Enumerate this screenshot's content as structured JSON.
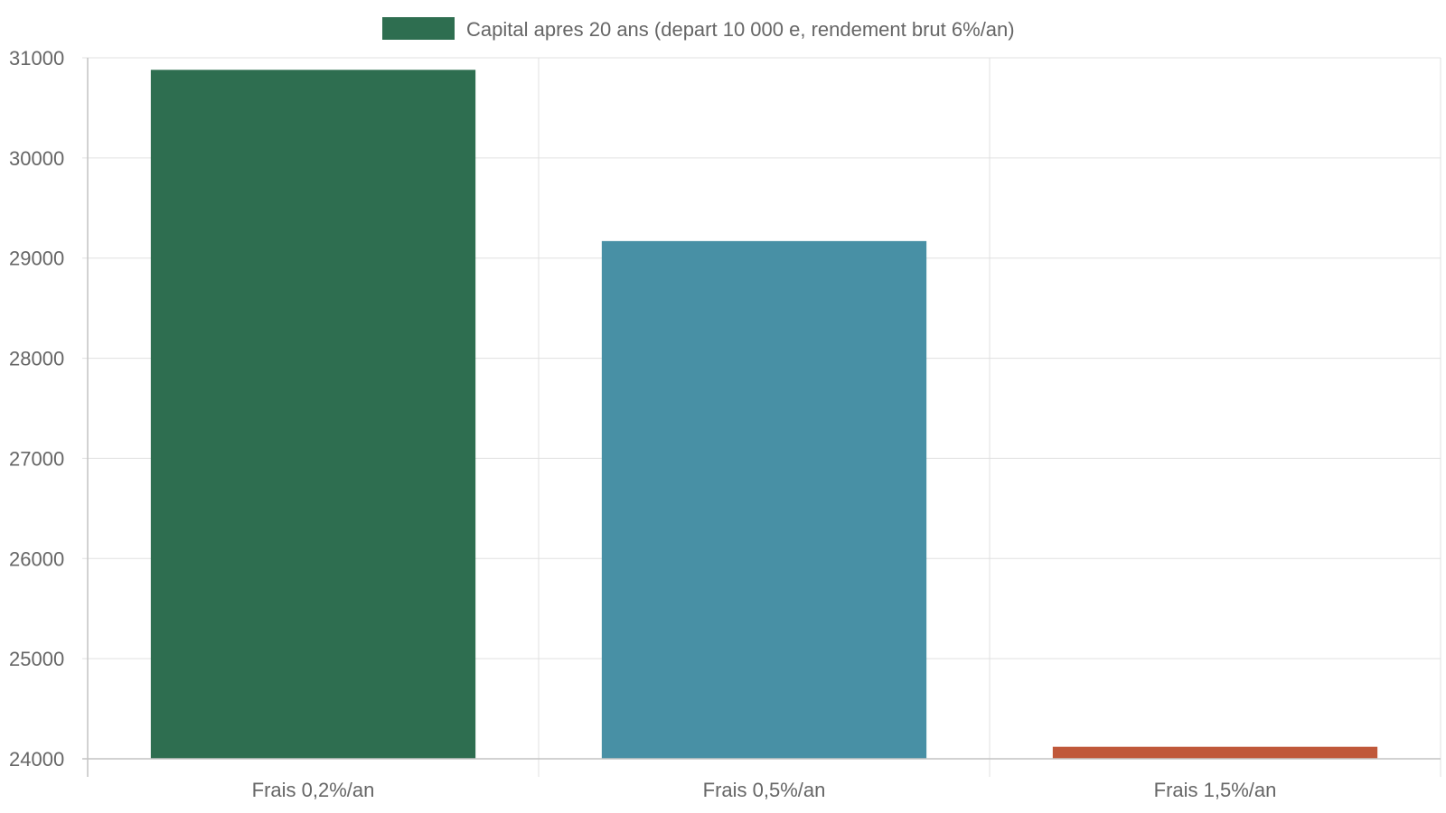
{
  "chart_data": {
    "type": "bar",
    "categories": [
      "Frais 0,2%/an",
      "Frais 0,5%/an",
      "Frais 1,5%/an"
    ],
    "series": [
      {
        "name": "Capital apres 20 ans (depart 10 000 e, rendement brut 6%/an)",
        "values": [
          30880,
          29170,
          24120
        ]
      }
    ],
    "bar_colors": [
      "#2e6e50",
      "#4890a5",
      "#c0583a"
    ],
    "legend_color": "#2e6e50",
    "legend_position": "top-center",
    "ylim": [
      24000,
      31000
    ],
    "yticks": [
      24000,
      25000,
      26000,
      27000,
      28000,
      29000,
      30000,
      31000
    ],
    "xlabel": "",
    "ylabel": "",
    "grid": true
  }
}
